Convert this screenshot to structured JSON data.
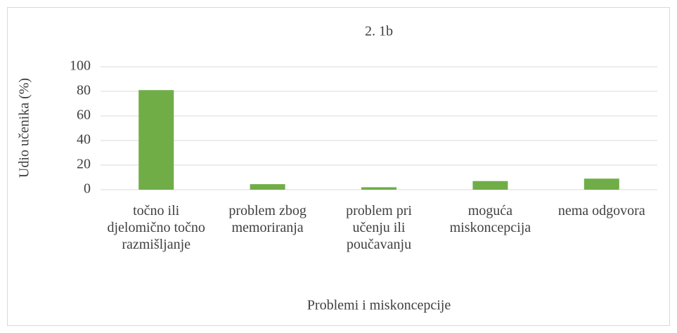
{
  "chart_data": {
    "type": "bar",
    "title": "2. 1b",
    "y_label": "Udio učenika (%)",
    "x_label": "Problemi i miskoncepcije",
    "categories": [
      "točno ili djelomično točno razmišljanje",
      "problem zbog memoriranja",
      "problem pri učenju ili poučavanju",
      "moguća miskoncepcija",
      "nema odgovora"
    ],
    "values": [
      81,
      4.5,
      2,
      7,
      9
    ],
    "color": "#70ad47",
    "ylim": [
      0,
      100
    ],
    "yticks": [
      0,
      20,
      40,
      60,
      80,
      100
    ],
    "grid": true
  }
}
